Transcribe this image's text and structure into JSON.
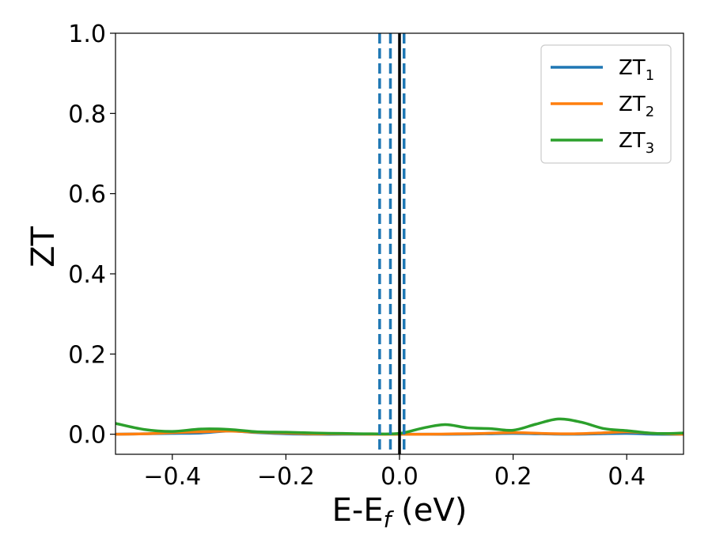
{
  "chart_data": {
    "type": "line",
    "title": "",
    "xlabel": {
      "main": "E-E",
      "sub": "f",
      "unit": " (eV)"
    },
    "ylabel": "ZT",
    "xlim": [
      -0.5,
      0.5
    ],
    "ylim": [
      -0.05,
      1.0
    ],
    "xticks": [
      -0.4,
      -0.2,
      0.0,
      0.2,
      0.4
    ],
    "xtick_labels": [
      "−0.4",
      "−0.2",
      "0.0",
      "0.2",
      "0.4"
    ],
    "yticks": [
      0.0,
      0.2,
      0.4,
      0.6,
      0.8,
      1.0
    ],
    "ytick_labels": [
      "0.0",
      "0.2",
      "0.4",
      "0.6",
      "0.8",
      "1.0"
    ],
    "grid": false,
    "legend_position": "top-right",
    "vlines_dashed": [
      -0.035,
      -0.016,
      0.008
    ],
    "vline_solid": 0.0,
    "series": [
      {
        "name": "ZT",
        "sub": "1",
        "color": "#1f77b4",
        "x": [
          -0.5,
          -0.45,
          -0.4,
          -0.35,
          -0.3,
          -0.25,
          -0.2,
          -0.15,
          -0.1,
          -0.05,
          0.0,
          0.05,
          0.1,
          0.15,
          0.2,
          0.25,
          0.3,
          0.35,
          0.4,
          0.45,
          0.5
        ],
        "y": [
          0.0,
          0.001,
          0.002,
          0.003,
          0.008,
          0.004,
          0.001,
          0.0,
          0.0,
          0.0,
          0.0,
          0.0,
          0.0,
          0.001,
          0.002,
          0.001,
          0.0,
          0.001,
          0.002,
          0.0,
          0.0
        ]
      },
      {
        "name": "ZT",
        "sub": "2",
        "color": "#ff7f0e",
        "x": [
          -0.5,
          -0.45,
          -0.4,
          -0.35,
          -0.3,
          -0.25,
          -0.2,
          -0.15,
          -0.1,
          -0.05,
          0.0,
          0.05,
          0.1,
          0.15,
          0.2,
          0.25,
          0.3,
          0.35,
          0.4,
          0.45,
          0.5
        ],
        "y": [
          0.0,
          0.001,
          0.004,
          0.006,
          0.008,
          0.005,
          0.003,
          0.001,
          0.001,
          0.0,
          0.0,
          0.0,
          0.001,
          0.002,
          0.004,
          0.002,
          0.001,
          0.003,
          0.006,
          0.002,
          0.0
        ]
      },
      {
        "name": "ZT",
        "sub": "3",
        "color": "#2ca02c",
        "x": [
          -0.5,
          -0.45,
          -0.4,
          -0.35,
          -0.3,
          -0.25,
          -0.2,
          -0.15,
          -0.1,
          -0.05,
          0.0,
          0.04,
          0.08,
          0.12,
          0.16,
          0.2,
          0.24,
          0.28,
          0.32,
          0.36,
          0.4,
          0.45,
          0.5
        ],
        "y": [
          0.027,
          0.012,
          0.007,
          0.013,
          0.012,
          0.006,
          0.005,
          0.003,
          0.002,
          0.001,
          0.002,
          0.015,
          0.024,
          0.016,
          0.014,
          0.01,
          0.025,
          0.038,
          0.03,
          0.014,
          0.009,
          0.002,
          0.003
        ]
      }
    ]
  }
}
